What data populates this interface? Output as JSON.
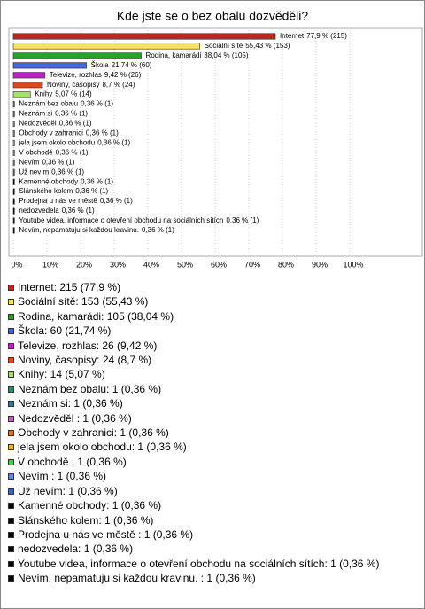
{
  "chart_data": {
    "type": "bar",
    "orientation": "horizontal",
    "title": "Kde jste se o bez obalu dozvěděli?",
    "categories": [
      "Internet",
      "Sociální sítě",
      "Rodina, kamarádi",
      "Škola",
      "Televize, rozhlas",
      "Noviny, časopisy",
      "Knihy",
      "Neznám bez obalu",
      "Neznám si",
      "Nedozvěděl",
      "Obchody v zahranici",
      "jela jsem okolo obchodu",
      "V obchodě",
      "Nevím",
      "Už nevím",
      "Kamenné obchody",
      "Slánského kolem",
      "Prodejna u nás ve městě",
      "nedozvedela",
      "Youtube videa, informace o otevření obchodu na sociálních sítích",
      "Nevím, nepamatuju si každou kravinu."
    ],
    "values": [
      77.9,
      55.43,
      38.04,
      21.74,
      9.42,
      8.7,
      5.07,
      0.36,
      0.36,
      0.36,
      0.36,
      0.36,
      0.36,
      0.36,
      0.36,
      0.36,
      0.36,
      0.36,
      0.36,
      0.36,
      0.36
    ],
    "value_labels": [
      "77,9 % (215)",
      "55,43 % (153)",
      "38,04 % (105)",
      "21,74 % (60)",
      "9,42 % (26)",
      "8,7 % (24)",
      "5,07 % (14)",
      "0,36 % (1)",
      "0,36 % (1)",
      "0,36 % (1)",
      "0,36 % (1)",
      "0,36 % (1)",
      "0,36 % (1)",
      "0,36 % (1)",
      "0,36 % (1)",
      "0,36 % (1)",
      "0,36 % (1)",
      "0,36 % (1)",
      "0,36 % (1)",
      "0,36 % (1)",
      "0,36 % (1)"
    ],
    "colors": [
      "#b8281c",
      "#f8e060",
      "#2ca02c",
      "#4464d8",
      "#c020c8",
      "#e04818",
      "#a8e070",
      "#2a8a6a",
      "#3a7a90",
      "#c060c0",
      "#e07020",
      "#f0b030",
      "#40d040",
      "#6080e0",
      "#4060c0",
      "#000000",
      "#000000",
      "#000000",
      "#000000",
      "#000000",
      "#000000"
    ],
    "legend_labels": [
      "Internet: 215 (77,9 %)",
      "Sociální sítě: 153 (55,43 %)",
      "Rodina, kamarádi: 105 (38,04 %)",
      "Škola: 60 (21,74 %)",
      "Televize, rozhlas: 26 (9,42 %)",
      "Noviny, časopisy: 24 (8,7 %)",
      "Knihy: 14 (5,07 %)",
      "Neznám bez obalu: 1 (0,36 %)",
      "Neznám si: 1 (0,36 %)",
      "Nedozvěděl : 1 (0,36 %)",
      "Obchody v zahranici: 1 (0,36 %)",
      "jela jsem okolo obchodu: 1 (0,36 %)",
      "V obchodě : 1 (0,36 %)",
      "Nevím : 1 (0,36 %)",
      "Už nevím: 1 (0,36 %)",
      "Kamenné obchody: 1 (0,36 %)",
      "Slánského kolem: 1 (0,36 %)",
      "Prodejna u nás ve městě : 1 (0,36 %)",
      "nedozvedela: 1 (0,36 %)",
      "Youtube videa, informace o otevření obchodu na sociálních sítích: 1 (0,36 %)",
      "Nevím, nepamatuju si každou kravinu. : 1 (0,36 %)"
    ],
    "xlim": [
      0,
      100
    ],
    "xticks": [
      {
        "value": 0,
        "label": "0%"
      },
      {
        "value": 10,
        "label": "10%"
      },
      {
        "value": 20,
        "label": "20%"
      },
      {
        "value": 30,
        "label": "30%"
      },
      {
        "value": 40,
        "label": "40%"
      },
      {
        "value": 50,
        "label": "50%"
      },
      {
        "value": 60,
        "label": "60%"
      },
      {
        "value": 70,
        "label": "70%"
      },
      {
        "value": 80,
        "label": "80%"
      },
      {
        "value": 90,
        "label": "90%"
      },
      {
        "value": 100,
        "label": "100%"
      }
    ],
    "grid": true
  }
}
